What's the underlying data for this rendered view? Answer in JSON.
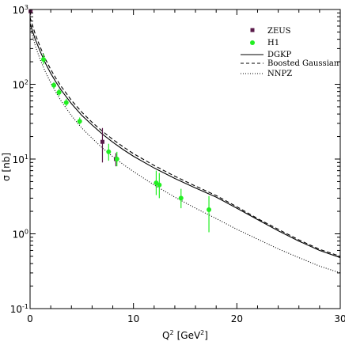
{
  "chart_data": {
    "type": "scatter",
    "title": "",
    "xlabel": "Q",
    "xlabel_sup": "2",
    "xlabel_unit_open": "[GeV",
    "xlabel_unit_sup": "2",
    "xlabel_unit_close": "]",
    "ylabel": "σ [nb]",
    "xlim": [
      0,
      30
    ],
    "ylim": [
      0.1,
      1000
    ],
    "yscale": "log",
    "x_ticks": [
      0,
      10,
      20,
      30
    ],
    "x_tick_labels": [
      "0",
      "10",
      "20",
      "30"
    ],
    "y_ticks": [
      {
        "value": 1000,
        "base": "10",
        "exp": "3"
      },
      {
        "value": 100,
        "base": "10",
        "exp": "2"
      },
      {
        "value": 10,
        "base": "10",
        "exp": "1"
      },
      {
        "value": 1,
        "base": "10",
        "exp": "0"
      },
      {
        "value": 0.1,
        "base": "10",
        "exp": "-1"
      }
    ],
    "grid": false,
    "legend_position": "top-right",
    "series": [
      {
        "name": "ZEUS",
        "kind": "points",
        "marker": "square",
        "color": "#5a1a4a",
        "points": [
          {
            "x": 0.05,
            "y": 950,
            "ylo": 850,
            "yhi": 1050
          },
          {
            "x": 7.0,
            "y": 17.0,
            "ylo": 9.0,
            "yhi": 26.0
          },
          {
            "x": 8.3,
            "y": 10.0,
            "ylo": 8.0,
            "yhi": 12.0
          }
        ]
      },
      {
        "name": "H1",
        "kind": "points",
        "marker": "circle",
        "color": "#22ee22",
        "points": [
          {
            "x": 1.3,
            "y": 215,
            "ylo": 185,
            "yhi": 255
          },
          {
            "x": 2.3,
            "y": 97,
            "ylo": 88,
            "yhi": 107
          },
          {
            "x": 2.8,
            "y": 78,
            "ylo": 70,
            "yhi": 87
          },
          {
            "x": 3.5,
            "y": 57,
            "ylo": 51,
            "yhi": 64
          },
          {
            "x": 4.8,
            "y": 32,
            "ylo": 29,
            "yhi": 36
          },
          {
            "x": 7.6,
            "y": 12.5,
            "ylo": 9.5,
            "yhi": 16.0
          },
          {
            "x": 8.4,
            "y": 10.0,
            "ylo": 8.0,
            "yhi": 12.5
          },
          {
            "x": 12.2,
            "y": 4.8,
            "ylo": 3.3,
            "yhi": 7.0
          },
          {
            "x": 12.5,
            "y": 4.5,
            "ylo": 3.0,
            "yhi": 6.5
          },
          {
            "x": 14.6,
            "y": 3.0,
            "ylo": 2.2,
            "yhi": 4.0
          },
          {
            "x": 17.3,
            "y": 2.1,
            "ylo": 1.05,
            "yhi": 3.2
          }
        ]
      },
      {
        "name": "DGKP",
        "kind": "line",
        "dash": "solid",
        "color": "#000000",
        "x": [
          0,
          0.5,
          1,
          1.5,
          2,
          2.5,
          3,
          4,
          5,
          6,
          7,
          8,
          9,
          10,
          12,
          14,
          16,
          18,
          20,
          22,
          24,
          26,
          28,
          30
        ],
        "y": [
          650,
          400,
          270,
          190,
          140,
          107,
          84,
          55,
          38.5,
          28.5,
          21.5,
          16.8,
          13.4,
          10.9,
          7.6,
          5.5,
          4.1,
          3.1,
          2.2,
          1.55,
          1.1,
          0.8,
          0.6,
          0.48
        ]
      },
      {
        "name": "Boosted Gaussian",
        "kind": "line",
        "dash": "dashed",
        "color": "#000000",
        "x": [
          0,
          0.5,
          1,
          1.5,
          2,
          2.5,
          3,
          4,
          5,
          6,
          7,
          8,
          9,
          10,
          12,
          14,
          16,
          18,
          20,
          22,
          24,
          26,
          28,
          30
        ],
        "y": [
          780,
          470,
          310,
          215,
          158,
          120,
          94,
          61,
          42.5,
          31,
          23.5,
          18.3,
          14.6,
          11.8,
          8.2,
          5.9,
          4.35,
          3.25,
          2.3,
          1.6,
          1.15,
          0.83,
          0.62,
          0.5
        ]
      },
      {
        "name": "NNPZ",
        "kind": "line",
        "dash": "dotted",
        "color": "#000000",
        "x": [
          0,
          0.5,
          1,
          1.5,
          2,
          2.5,
          3,
          4,
          5,
          6,
          7,
          8,
          9,
          10,
          12,
          14,
          16,
          18,
          20,
          22,
          24,
          26,
          28,
          30
        ],
        "y": [
          600,
          330,
          210,
          145,
          105,
          78,
          60,
          38,
          26,
          19,
          14,
          10.8,
          8.5,
          6.8,
          4.5,
          3.1,
          2.2,
          1.6,
          1.15,
          0.85,
          0.63,
          0.48,
          0.37,
          0.3
        ]
      }
    ]
  }
}
